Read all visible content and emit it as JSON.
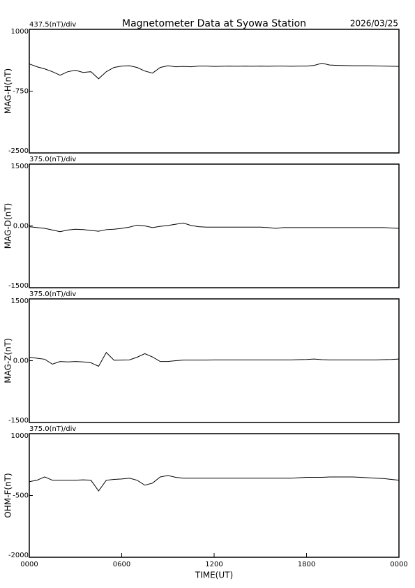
{
  "header": {
    "title": "Magnetometer Data at Syowa Station",
    "date": "2026/03/25"
  },
  "chart_data": [
    {
      "type": "line",
      "subtitle": "437.5(nT)/div",
      "ylabel": "MAG-H(nT)",
      "color": "#000000",
      "xlim": [
        0,
        24
      ],
      "ylim": [
        1000,
        -2500
      ],
      "yticks": [
        1000,
        -750,
        -2500
      ],
      "x": [
        0,
        0.5,
        1,
        1.5,
        2,
        2.5,
        3,
        3.5,
        4,
        4.5,
        5,
        5.5,
        6,
        6.5,
        7,
        7.5,
        8,
        8.5,
        9,
        9.5,
        10,
        10.5,
        11,
        11.5,
        12,
        12.5,
        13,
        13.5,
        14,
        14.5,
        15,
        15.5,
        16,
        16.5,
        17,
        17.5,
        18,
        18.5,
        19,
        19.5,
        20,
        20.5,
        21,
        21.5,
        22,
        22.5,
        23,
        23.5,
        24
      ],
      "values": [
        20,
        -60,
        -120,
        -200,
        -300,
        -200,
        -160,
        -220,
        -200,
        -400,
        -200,
        -80,
        -40,
        -30,
        -80,
        -180,
        -240,
        -80,
        -30,
        -60,
        -50,
        -60,
        -40,
        -40,
        -50,
        -45,
        -40,
        -45,
        -40,
        -45,
        -40,
        -45,
        -40,
        -40,
        -45,
        -40,
        -40,
        -20,
        40,
        -10,
        -20,
        -25,
        -30,
        -30,
        -30,
        -35,
        -40,
        -45,
        -50
      ]
    },
    {
      "type": "line",
      "subtitle": "375.0(nT)/div",
      "ylabel": "MAG-D(nT)",
      "color": "#000000",
      "xlim": [
        0,
        24
      ],
      "ylim": [
        1500,
        -1500
      ],
      "yticks": [
        1500,
        {
          "value": 0,
          "label": "0.00"
        },
        -1500
      ],
      "x": [
        0,
        0.5,
        1,
        1.5,
        2,
        2.5,
        3,
        3.5,
        4,
        4.5,
        5,
        5.5,
        6,
        6.5,
        7,
        7.5,
        8,
        8.5,
        9,
        9.5,
        10,
        10.5,
        11,
        11.5,
        12,
        12.5,
        13,
        13.5,
        14,
        14.5,
        15,
        15.5,
        16,
        16.5,
        17,
        17.5,
        18,
        18.5,
        19,
        19.5,
        20,
        20.5,
        21,
        21.5,
        22,
        22.5,
        23,
        23.5,
        24
      ],
      "values": [
        -20,
        -40,
        -60,
        -100,
        -140,
        -100,
        -80,
        -90,
        -110,
        -130,
        -90,
        -80,
        -60,
        -30,
        20,
        0,
        -40,
        -10,
        10,
        40,
        70,
        10,
        -20,
        -30,
        -30,
        -30,
        -30,
        -30,
        -30,
        -30,
        -30,
        -40,
        -60,
        -40,
        -40,
        -40,
        -40,
        -40,
        -40,
        -40,
        -40,
        -40,
        -40,
        -40,
        -40,
        -40,
        -40,
        -50,
        -60
      ]
    },
    {
      "type": "line",
      "subtitle": "375.0(nT)/div",
      "ylabel": "MAG-Z(nT)",
      "color": "#000000",
      "xlim": [
        0,
        24
      ],
      "ylim": [
        1500,
        -1500
      ],
      "yticks": [
        1500,
        {
          "value": 0,
          "label": "0.00"
        },
        -1500
      ],
      "x": [
        0,
        0.5,
        1,
        1.5,
        2,
        2.5,
        3,
        3.5,
        4,
        4.5,
        5,
        5.5,
        6,
        6.5,
        7,
        7.5,
        8,
        8.5,
        9,
        9.5,
        10,
        10.5,
        11,
        11.5,
        12,
        12.5,
        13,
        13.5,
        14,
        14.5,
        15,
        15.5,
        16,
        16.5,
        17,
        17.5,
        18,
        18.5,
        19,
        19.5,
        20,
        20.5,
        21,
        21.5,
        22,
        22.5,
        23,
        23.5,
        24
      ],
      "values": [
        85,
        60,
        35,
        -85,
        -20,
        -30,
        -20,
        -30,
        -50,
        -135,
        200,
        10,
        15,
        20,
        85,
        170,
        90,
        -20,
        -20,
        0,
        15,
        15,
        15,
        15,
        20,
        20,
        20,
        20,
        20,
        20,
        20,
        20,
        20,
        20,
        20,
        25,
        30,
        40,
        25,
        20,
        20,
        20,
        20,
        20,
        20,
        20,
        25,
        30,
        40
      ]
    },
    {
      "type": "line",
      "subtitle": "375.0(nT)/div",
      "ylabel": "OHM-F(nT)",
      "xlabel": "TIME(UT)",
      "color": "#000000",
      "xlim": [
        0,
        24
      ],
      "ylim": [
        1000,
        -2000
      ],
      "yticks": [
        1000,
        -500,
        -2000
      ],
      "xticks": [
        {
          "value": 0,
          "label": "0000"
        },
        {
          "value": 6,
          "label": "0600"
        },
        {
          "value": 12,
          "label": "1200"
        },
        {
          "value": 18,
          "label": "1800"
        },
        {
          "value": 24,
          "label": "0000"
        }
      ],
      "x": [
        0,
        0.5,
        1,
        1.5,
        2,
        2.5,
        3,
        3.5,
        4,
        4.5,
        5,
        5.5,
        6,
        6.5,
        7,
        7.5,
        8,
        8.5,
        9,
        9.5,
        10,
        10.5,
        11,
        11.5,
        12,
        12.5,
        13,
        13.5,
        14,
        14.5,
        15,
        15.5,
        16,
        16.5,
        17,
        17.5,
        18,
        18.5,
        19,
        19.5,
        20,
        20.5,
        21,
        21.5,
        22,
        22.5,
        23,
        23.5,
        24
      ],
      "values": [
        -165,
        -130,
        -50,
        -130,
        -130,
        -130,
        -130,
        -120,
        -130,
        -390,
        -130,
        -110,
        -100,
        -80,
        -130,
        -250,
        -200,
        -50,
        -15,
        -60,
        -80,
        -80,
        -80,
        -80,
        -80,
        -80,
        -80,
        -80,
        -80,
        -80,
        -80,
        -80,
        -80,
        -80,
        -80,
        -70,
        -60,
        -60,
        -60,
        -50,
        -50,
        -50,
        -50,
        -60,
        -70,
        -80,
        -90,
        -110,
        -130
      ]
    }
  ]
}
